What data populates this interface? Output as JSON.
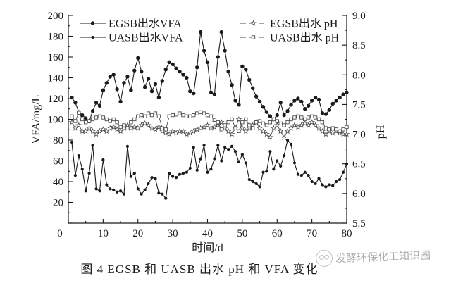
{
  "figure": {
    "caption": "图 4  EGSB 和 UASB 出水 pH 和 VFA 变化",
    "watermark": "发酵环保化工知识圈",
    "line_color": "#1a1a1a",
    "ph_line_color": "#4d4d4d",
    "background": "#ffffff"
  },
  "chart_data": {
    "type": "line",
    "title": "",
    "xlabel": "时间/d",
    "ylabel_left": "VFA/mg/L",
    "ylabel_right": "pH",
    "x_range": [
      0,
      80
    ],
    "x_major_step": 10,
    "x_minor_step": 5,
    "y_left_range": [
      0,
      200
    ],
    "y_left_major_step": 20,
    "y_left_minor_step": 10,
    "y_right_range": [
      5.5,
      9.0
    ],
    "y_right_major_step": 0.5,
    "y_right_minor_step": 0.25,
    "grid": false,
    "legend_position": "top-inside",
    "x": [
      1,
      2,
      3,
      4,
      5,
      6,
      7,
      8,
      9,
      10,
      11,
      12,
      13,
      14,
      15,
      16,
      17,
      18,
      19,
      20,
      21,
      22,
      23,
      24,
      25,
      26,
      27,
      28,
      29,
      30,
      31,
      32,
      33,
      34,
      35,
      36,
      37,
      38,
      39,
      40,
      41,
      42,
      43,
      44,
      45,
      46,
      47,
      48,
      49,
      50,
      51,
      52,
      53,
      54,
      55,
      56,
      57,
      58,
      59,
      60,
      61,
      62,
      63,
      64,
      65,
      66,
      67,
      68,
      69,
      70,
      71,
      72,
      73,
      74,
      75,
      76,
      77,
      78,
      79,
      80
    ],
    "series": [
      {
        "name": "EGSB出水VFA",
        "axis": "left",
        "legend": "left",
        "marker": "filled-circle",
        "line_style": "solid",
        "values": [
          121,
          116,
          107,
          104,
          101,
          98,
          108,
          116,
          113,
          128,
          135,
          141,
          143,
          129,
          117,
          135,
          141,
          128,
          147,
          159,
          146,
          131,
          139,
          127,
          134,
          121,
          137,
          148,
          155,
          153,
          149,
          146,
          143,
          140,
          127,
          125,
          150,
          184,
          166,
          155,
          126,
          124,
          160,
          184,
          166,
          146,
          133,
          118,
          114,
          151,
          148,
          138,
          130,
          122,
          117,
          112,
          107,
          103,
          100,
          104,
          116,
          104,
          108,
          114,
          118,
          120,
          117,
          110,
          113,
          118,
          121,
          119,
          106,
          105,
          109,
          115,
          118,
          121,
          124,
          126
        ]
      },
      {
        "name": "UASB出水VFA",
        "axis": "left",
        "legend": "left",
        "marker": "filled-circle-small",
        "line_style": "solid",
        "values": [
          78,
          46,
          65,
          52,
          31,
          48,
          75,
          33,
          31,
          61,
          37,
          33,
          32,
          30,
          31,
          28,
          74,
          45,
          48,
          33,
          28,
          32,
          38,
          44,
          43,
          29,
          28,
          24,
          48,
          45,
          44,
          47,
          48,
          49,
          53,
          73,
          51,
          62,
          75,
          49,
          52,
          62,
          75,
          60,
          73,
          71,
          74,
          69,
          59,
          66,
          58,
          42,
          40,
          38,
          35,
          49,
          50,
          69,
          52,
          60,
          55,
          65,
          80,
          76,
          58,
          47,
          46,
          49,
          46,
          40,
          38,
          43,
          37,
          35,
          37,
          36,
          40,
          42,
          49,
          57
        ]
      },
      {
        "name": "EGSB出水 pH",
        "axis": "right",
        "legend": "right",
        "marker": "open-star",
        "line_style": "solid",
        "values": [
          7.2,
          7.1,
          7.15,
          7.05,
          7.05,
          7.1,
          7.05,
          7.0,
          7.05,
          7.08,
          7.05,
          7.1,
          7.12,
          7.08,
          7.05,
          7.1,
          7.15,
          7.1,
          7.12,
          7.1,
          7.15,
          7.18,
          7.15,
          7.1,
          7.08,
          7.12,
          7.05,
          7.02,
          7.0,
          7.05,
          7.02,
          7.05,
          7.05,
          7.0,
          7.02,
          7.05,
          7.08,
          7.1,
          7.12,
          7.15,
          7.1,
          7.12,
          7.15,
          7.2,
          7.1,
          7.05,
          7.0,
          7.1,
          7.25,
          7.1,
          7.05,
          7.1,
          7.15,
          7.2,
          7.1,
          7.05,
          7.0,
          6.95,
          7.1,
          7.15,
          7.05,
          6.94,
          7.05,
          7.1,
          7.15,
          7.12,
          7.15,
          7.18,
          7.15,
          7.2,
          7.15,
          7.1,
          7.05,
          7.0,
          7.05,
          7.02,
          7.05,
          7.02,
          7.0,
          7.0
        ]
      },
      {
        "name": "UASB出水 pH",
        "axis": "right",
        "legend": "right",
        "marker": "open-square",
        "line_style": "solid",
        "values": [
          7.3,
          7.22,
          7.36,
          7.25,
          7.2,
          7.22,
          7.25,
          7.28,
          7.3,
          7.28,
          7.25,
          7.22,
          7.25,
          7.2,
          7.12,
          7.15,
          7.1,
          7.2,
          7.25,
          7.3,
          7.32,
          7.3,
          7.35,
          7.32,
          7.35,
          7.3,
          7.1,
          7.08,
          7.3,
          7.32,
          7.33,
          7.35,
          7.32,
          7.3,
          7.3,
          7.32,
          7.35,
          7.37,
          7.35,
          7.32,
          7.3,
          7.24,
          7.2,
          7.08,
          7.15,
          7.2,
          7.25,
          7.1,
          7.05,
          7.2,
          7.25,
          7.15,
          7.1,
          7.2,
          7.22,
          7.18,
          7.15,
          7.2,
          7.25,
          7.22,
          7.18,
          7.15,
          7.2,
          7.25,
          7.28,
          7.3,
          7.28,
          7.25,
          7.28,
          7.3,
          7.28,
          7.25,
          7.2,
          7.1,
          7.08,
          7.1,
          7.08,
          7.05,
          7.08,
          7.12
        ]
      }
    ]
  }
}
